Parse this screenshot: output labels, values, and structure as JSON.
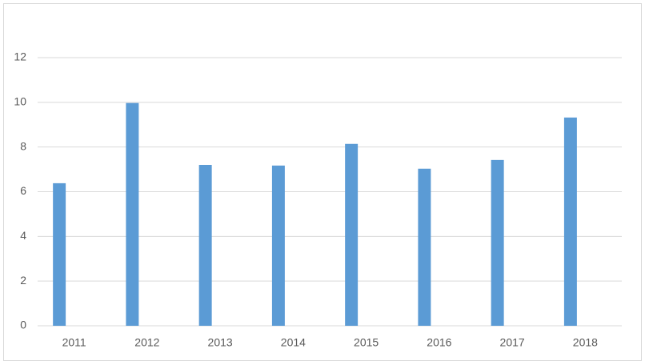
{
  "chart_data": {
    "type": "bar",
    "categories": [
      "2011",
      "2012",
      "2013",
      "2014",
      "2015",
      "2016",
      "2017",
      "2018"
    ],
    "values": [
      6.38,
      9.97,
      7.2,
      7.17,
      8.14,
      7.03,
      7.42,
      9.32
    ],
    "color": "#5b9bd5",
    "ylim": [
      0,
      12
    ],
    "yticks": [
      0,
      2,
      4,
      6,
      8,
      10,
      12
    ],
    "grid": true
  }
}
